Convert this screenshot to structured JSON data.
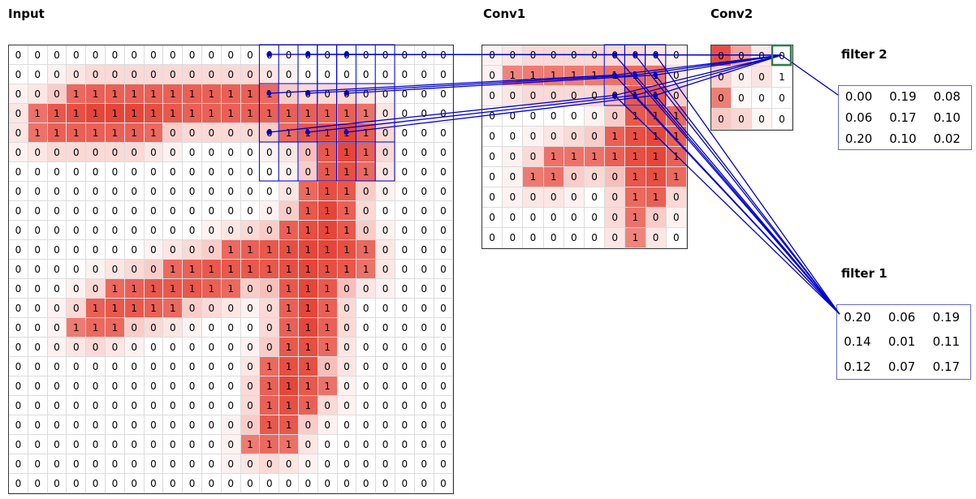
{
  "labels": {
    "input": "Input",
    "conv1": "Conv1",
    "conv2": "Conv2",
    "filter1": "filter 1",
    "filter2": "filter 2"
  },
  "colors": {
    "stroke_red": "#e6463a",
    "line_blue": "#0000cd",
    "green_box": "#2e7d4f",
    "filter_border": "#6a6ac0",
    "grid_border": "#3a3a3a",
    "grid_line": "#dcdcdc"
  },
  "input_grid": {
    "rows": 23,
    "cols": 23,
    "values": [
      [
        0,
        0,
        0,
        0,
        0,
        0,
        0,
        0,
        0,
        0,
        0,
        0,
        0,
        0,
        0,
        0,
        0,
        0,
        0,
        0,
        0,
        0,
        0
      ],
      [
        0,
        0,
        0,
        0,
        0,
        0,
        0,
        0,
        0,
        0,
        0,
        0,
        0,
        0,
        0,
        0,
        0,
        0,
        0,
        0,
        0,
        0,
        0
      ],
      [
        0,
        0,
        0,
        1,
        1,
        1,
        1,
        1,
        1,
        1,
        1,
        1,
        1,
        1,
        0,
        0,
        0,
        0,
        0,
        0,
        0,
        0,
        0
      ],
      [
        0,
        1,
        1,
        1,
        1,
        1,
        1,
        1,
        1,
        1,
        1,
        1,
        1,
        1,
        1,
        1,
        1,
        1,
        1,
        0,
        0,
        0,
        0
      ],
      [
        0,
        1,
        1,
        1,
        1,
        1,
        1,
        1,
        0,
        0,
        0,
        0,
        0,
        0,
        1,
        1,
        1,
        1,
        1,
        0,
        0,
        0,
        0
      ],
      [
        0,
        0,
        0,
        0,
        0,
        0,
        0,
        0,
        0,
        0,
        0,
        0,
        0,
        0,
        0,
        0,
        1,
        1,
        1,
        0,
        0,
        0,
        0
      ],
      [
        0,
        0,
        0,
        0,
        0,
        0,
        0,
        0,
        0,
        0,
        0,
        0,
        0,
        0,
        0,
        0,
        1,
        1,
        1,
        0,
        0,
        0,
        0
      ],
      [
        0,
        0,
        0,
        0,
        0,
        0,
        0,
        0,
        0,
        0,
        0,
        0,
        0,
        0,
        0,
        1,
        1,
        1,
        0,
        0,
        0,
        0,
        0
      ],
      [
        0,
        0,
        0,
        0,
        0,
        0,
        0,
        0,
        0,
        0,
        0,
        0,
        0,
        0,
        0,
        1,
        1,
        1,
        0,
        0,
        0,
        0,
        0
      ],
      [
        0,
        0,
        0,
        0,
        0,
        0,
        0,
        0,
        0,
        0,
        0,
        0,
        0,
        0,
        1,
        1,
        1,
        1,
        0,
        0,
        0,
        0,
        0
      ],
      [
        0,
        0,
        0,
        0,
        0,
        0,
        0,
        0,
        0,
        0,
        0,
        1,
        1,
        1,
        1,
        1,
        1,
        1,
        1,
        0,
        0,
        0,
        0
      ],
      [
        0,
        0,
        0,
        0,
        0,
        0,
        0,
        0,
        1,
        1,
        1,
        1,
        1,
        1,
        1,
        1,
        1,
        1,
        1,
        0,
        0,
        0,
        0
      ],
      [
        0,
        0,
        0,
        0,
        0,
        1,
        1,
        1,
        1,
        1,
        1,
        1,
        0,
        0,
        1,
        1,
        1,
        0,
        0,
        0,
        0,
        0,
        0
      ],
      [
        0,
        0,
        0,
        0,
        1,
        1,
        1,
        1,
        1,
        0,
        0,
        0,
        0,
        0,
        1,
        1,
        1,
        0,
        0,
        0,
        0,
        0,
        0
      ],
      [
        0,
        0,
        0,
        1,
        1,
        1,
        0,
        0,
        0,
        0,
        0,
        0,
        0,
        0,
        1,
        1,
        1,
        0,
        0,
        0,
        0,
        0,
        0
      ],
      [
        0,
        0,
        0,
        0,
        0,
        0,
        0,
        0,
        0,
        0,
        0,
        0,
        0,
        0,
        1,
        1,
        1,
        0,
        0,
        0,
        0,
        0,
        0
      ],
      [
        0,
        0,
        0,
        0,
        0,
        0,
        0,
        0,
        0,
        0,
        0,
        0,
        0,
        1,
        1,
        1,
        0,
        0,
        0,
        0,
        0,
        0,
        0
      ],
      [
        0,
        0,
        0,
        0,
        0,
        0,
        0,
        0,
        0,
        0,
        0,
        0,
        0,
        1,
        1,
        1,
        1,
        0,
        0,
        0,
        0,
        0,
        0
      ],
      [
        0,
        0,
        0,
        0,
        0,
        0,
        0,
        0,
        0,
        0,
        0,
        0,
        0,
        1,
        1,
        1,
        0,
        0,
        0,
        0,
        0,
        0,
        0
      ],
      [
        0,
        0,
        0,
        0,
        0,
        0,
        0,
        0,
        0,
        0,
        0,
        0,
        0,
        1,
        1,
        0,
        0,
        0,
        0,
        0,
        0,
        0,
        0
      ],
      [
        0,
        0,
        0,
        0,
        0,
        0,
        0,
        0,
        0,
        0,
        0,
        0,
        1,
        1,
        1,
        0,
        0,
        0,
        0,
        0,
        0,
        0,
        0
      ],
      [
        0,
        0,
        0,
        0,
        0,
        0,
        0,
        0,
        0,
        0,
        0,
        0,
        0,
        0,
        0,
        0,
        0,
        0,
        0,
        0,
        0,
        0,
        0
      ],
      [
        0,
        0,
        0,
        0,
        0,
        0,
        0,
        0,
        0,
        0,
        0,
        0,
        0,
        0,
        0,
        0,
        0,
        0,
        0,
        0,
        0,
        0,
        0
      ]
    ]
  },
  "conv1_grid": {
    "rows": 10,
    "cols": 10,
    "values": [
      [
        0,
        0,
        0,
        0,
        0,
        0,
        0,
        0,
        0,
        0
      ],
      [
        0,
        1,
        1,
        1,
        1,
        1,
        1,
        1,
        1,
        0
      ],
      [
        0,
        0,
        0,
        0,
        0,
        0,
        0,
        1,
        1,
        0
      ],
      [
        0,
        0,
        0,
        0,
        0,
        0,
        0,
        1,
        1,
        1
      ],
      [
        0,
        0,
        0,
        0,
        0,
        0,
        1,
        1,
        1,
        1
      ],
      [
        0,
        0,
        0,
        1,
        1,
        1,
        1,
        1,
        1,
        1
      ],
      [
        0,
        0,
        1,
        1,
        0,
        0,
        0,
        1,
        1,
        1
      ],
      [
        0,
        0,
        0,
        0,
        0,
        0,
        0,
        1,
        1,
        0
      ],
      [
        0,
        0,
        0,
        0,
        0,
        0,
        0,
        1,
        0,
        0
      ],
      [
        0,
        0,
        0,
        0,
        0,
        0,
        0,
        1,
        0,
        0
      ]
    ]
  },
  "conv2_grid": {
    "rows": 4,
    "cols": 4,
    "values": [
      [
        0,
        0,
        0,
        0
      ],
      [
        0,
        0,
        0,
        1
      ],
      [
        0,
        0,
        0,
        0
      ],
      [
        0,
        0,
        0,
        0
      ]
    ],
    "shades": [
      [
        0.95,
        0.5,
        0.12,
        0
      ],
      [
        0.25,
        0.08,
        0.15,
        0
      ],
      [
        0.7,
        0.04,
        0.0,
        0
      ],
      [
        0.3,
        0.22,
        0.05,
        0
      ]
    ]
  },
  "filter2": {
    "values": [
      [
        "0.00",
        "0.19",
        "0.08"
      ],
      [
        "0.06",
        "0.17",
        "0.10"
      ],
      [
        "0.20",
        "0.10",
        "0.02"
      ]
    ]
  },
  "filter1": {
    "values": [
      [
        "0.20",
        "0.06",
        "0.19"
      ],
      [
        "0.14",
        "0.01",
        "0.11"
      ],
      [
        "0.12",
        "0.07",
        "0.17"
      ]
    ]
  },
  "receptive_field": {
    "input_strip_col_starts": [
      13,
      14,
      15,
      16,
      17
    ],
    "input_strip_cols": 3,
    "input_strip_rows": 7,
    "input_hbox": {
      "row": 2,
      "col": 13,
      "rows": 3,
      "cols": 7
    },
    "input_dot_rows": [
      0,
      2,
      4
    ],
    "input_dot_cols": [
      13,
      15,
      17
    ],
    "conv1_region": {
      "row": 0,
      "col": 6,
      "size": 3
    },
    "conv2_cell": {
      "row": 0,
      "col": 3
    }
  }
}
